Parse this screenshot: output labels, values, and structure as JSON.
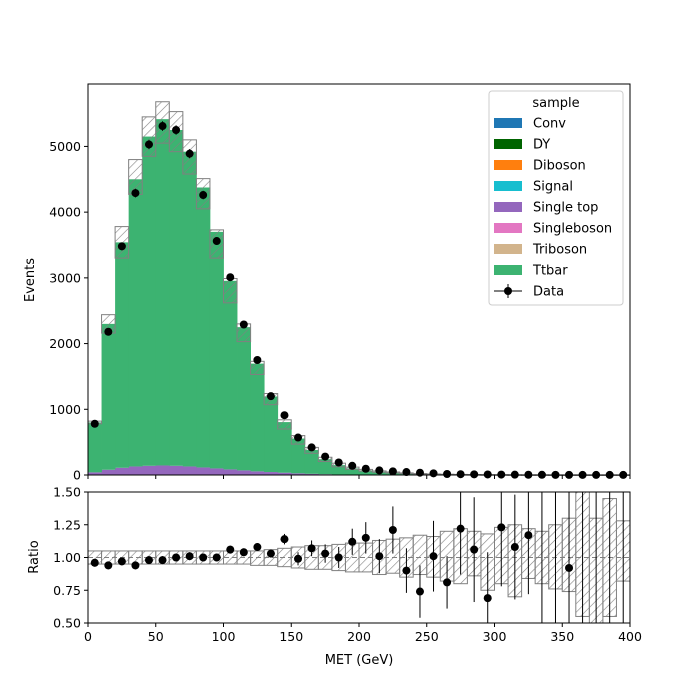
{
  "chart_data": [
    {
      "type": "bar",
      "subtype": "stacked-histogram",
      "title": "",
      "xlabel": "",
      "ylabel": "Events",
      "xlim": [
        0,
        400
      ],
      "ylim": [
        0,
        5950
      ],
      "yticks": [
        0,
        1000,
        2000,
        3000,
        4000,
        5000
      ],
      "bin_edges": [
        0,
        10,
        20,
        30,
        40,
        50,
        60,
        70,
        80,
        90,
        100,
        110,
        120,
        130,
        140,
        150,
        160,
        170,
        180,
        190,
        200,
        210,
        220,
        230,
        240,
        250,
        260,
        270,
        280,
        290,
        300,
        310,
        320,
        330,
        340,
        350,
        360,
        370,
        380,
        390,
        400
      ],
      "legend": {
        "title": "sample",
        "placement": "top-right",
        "entries": [
          {
            "name": "Conv",
            "color": "#1f77b4"
          },
          {
            "name": "DY",
            "color": "#006400"
          },
          {
            "name": "Diboson",
            "color": "#ff7f0e"
          },
          {
            "name": "Signal",
            "color": "#17becf"
          },
          {
            "name": "Single top",
            "color": "#9467bd"
          },
          {
            "name": "Singleboson",
            "color": "#e377c2"
          },
          {
            "name": "Triboson",
            "color": "#d2b48c"
          },
          {
            "name": "Ttbar",
            "color": "#3cb371"
          },
          {
            "name": "Data",
            "color": "#000000"
          }
        ]
      },
      "series": [
        {
          "name": "Single top",
          "color": "#9467bd",
          "values": [
            40,
            80,
            110,
            130,
            140,
            145,
            140,
            130,
            115,
            100,
            85,
            70,
            55,
            45,
            35,
            25,
            18,
            12,
            8,
            5,
            3,
            2,
            1,
            1,
            0,
            0,
            0,
            0,
            0,
            0,
            0,
            0,
            0,
            0,
            0,
            0,
            0,
            0,
            0,
            0
          ]
        },
        {
          "name": "Ttbar",
          "color": "#3cb371",
          "values": [
            760,
            2220,
            3430,
            4370,
            5010,
            5270,
            5110,
            4790,
            4260,
            3600,
            2870,
            2180,
            1640,
            1150,
            770,
            530,
            362,
            228,
            142,
            95,
            67,
            48,
            34,
            24,
            16,
            11,
            8,
            6,
            4,
            3,
            2,
            2,
            1,
            1,
            1,
            1,
            0,
            0,
            0,
            0
          ]
        }
      ],
      "uncertainty_band": {
        "up": [
          820,
          2440,
          3780,
          4800,
          5450,
          5680,
          5530,
          5100,
          4510,
          3730,
          2990,
          2300,
          1730,
          1240,
          840,
          600,
          420,
          270,
          180,
          120,
          85,
          62,
          46,
          32,
          22,
          16,
          12,
          9,
          7,
          5,
          4,
          3,
          2,
          2,
          1,
          1,
          1,
          1,
          1,
          1
        ],
        "down": [
          780,
          2160,
          3300,
          4270,
          4850,
          5050,
          4920,
          4580,
          4050,
          3300,
          2620,
          2030,
          1530,
          1070,
          700,
          470,
          330,
          205,
          125,
          85,
          58,
          42,
          30,
          20,
          13,
          9,
          6,
          4,
          3,
          2,
          1,
          1,
          1,
          0,
          0,
          0,
          0,
          0,
          0,
          0
        ]
      },
      "data": {
        "name": "Data",
        "x": [
          5,
          15,
          25,
          35,
          45,
          55,
          65,
          75,
          85,
          95,
          105,
          115,
          125,
          135,
          145,
          155,
          165,
          175,
          185,
          195,
          205,
          215,
          225,
          235,
          245,
          255,
          265,
          275,
          285,
          295,
          305,
          315,
          325,
          335,
          345,
          355,
          365,
          375,
          385,
          395
        ],
        "y": [
          780,
          2180,
          3480,
          4290,
          5030,
          5310,
          5250,
          4890,
          4260,
          3560,
          3010,
          2290,
          1750,
          1200,
          910,
          570,
          420,
          280,
          190,
          140,
          95,
          70,
          55,
          45,
          35,
          25,
          15,
          12,
          10,
          8,
          6,
          5,
          4,
          3,
          2,
          2,
          1,
          1,
          1,
          1
        ],
        "yerr": [
          28,
          47,
          59,
          66,
          71,
          73,
          72,
          70,
          65,
          60,
          55,
          48,
          42,
          35,
          30,
          24,
          20,
          17,
          14,
          12,
          10,
          8,
          7,
          7,
          6,
          5,
          4,
          3,
          3,
          3,
          2,
          2,
          2,
          2,
          1,
          1,
          1,
          1,
          1,
          1
        ]
      }
    },
    {
      "type": "scatter",
      "subtype": "ratio",
      "title": "",
      "xlabel": "MET (GeV)",
      "ylabel": "Ratio",
      "xlim": [
        0,
        400
      ],
      "ylim": [
        0.5,
        1.5
      ],
      "xticks": [
        0,
        50,
        100,
        150,
        200,
        250,
        300,
        350,
        400
      ],
      "yticks": [
        0.5,
        0.75,
        1.0,
        1.25,
        1.5
      ],
      "ytick_labels": [
        "0.50",
        "0.75",
        "1.00",
        "1.25",
        "1.50"
      ],
      "x": [
        5,
        15,
        25,
        35,
        45,
        55,
        65,
        75,
        85,
        95,
        105,
        115,
        125,
        135,
        145,
        155,
        165,
        175,
        185,
        195,
        205,
        215,
        225,
        235,
        245,
        255,
        265,
        275,
        285,
        295,
        305,
        315,
        325,
        335,
        345,
        355,
        365,
        375,
        385,
        395
      ],
      "y": [
        0.96,
        0.94,
        0.97,
        0.94,
        0.98,
        0.98,
        1.0,
        1.01,
        1.0,
        1.0,
        1.06,
        1.04,
        1.08,
        1.03,
        1.14,
        0.99,
        1.07,
        1.03,
        1.0,
        1.12,
        1.15,
        1.01,
        1.21,
        0.9,
        0.74,
        1.01,
        0.81,
        1.22,
        1.06,
        0.69,
        1.23,
        1.08,
        1.17,
        null,
        null,
        0.92,
        null,
        null,
        null,
        null
      ],
      "yerr": [
        0.03,
        0.03,
        0.03,
        0.03,
        0.03,
        0.03,
        0.03,
        0.03,
        0.03,
        0.03,
        0.03,
        0.03,
        0.03,
        0.03,
        0.04,
        0.05,
        0.06,
        0.07,
        0.08,
        0.1,
        0.12,
        0.13,
        0.18,
        0.17,
        0.2,
        0.27,
        0.2,
        0.35,
        0.4,
        0.35,
        0.45,
        0.4,
        0.45,
        0.7,
        0.7,
        0.6,
        0.8,
        0.8,
        0.8,
        0.8
      ],
      "band_up": [
        1.05,
        1.05,
        1.05,
        1.05,
        1.05,
        1.05,
        1.05,
        1.05,
        1.05,
        1.05,
        1.05,
        1.05,
        1.05,
        1.06,
        1.07,
        1.08,
        1.09,
        1.09,
        1.1,
        1.11,
        1.11,
        1.13,
        1.14,
        1.15,
        1.17,
        1.16,
        1.2,
        1.22,
        1.2,
        1.18,
        1.23,
        1.25,
        1.22,
        1.2,
        1.25,
        1.3,
        1.5,
        1.3,
        1.45,
        1.28
      ],
      "band_down": [
        0.95,
        0.95,
        0.95,
        0.95,
        0.95,
        0.95,
        0.95,
        0.95,
        0.95,
        0.95,
        0.95,
        0.95,
        0.94,
        0.94,
        0.93,
        0.92,
        0.91,
        0.91,
        0.9,
        0.89,
        0.89,
        0.87,
        0.88,
        0.85,
        0.87,
        0.85,
        0.82,
        0.8,
        0.86,
        0.75,
        0.8,
        0.7,
        0.84,
        0.8,
        0.76,
        0.74,
        0.55,
        0.5,
        0.55,
        0.82
      ]
    }
  ]
}
